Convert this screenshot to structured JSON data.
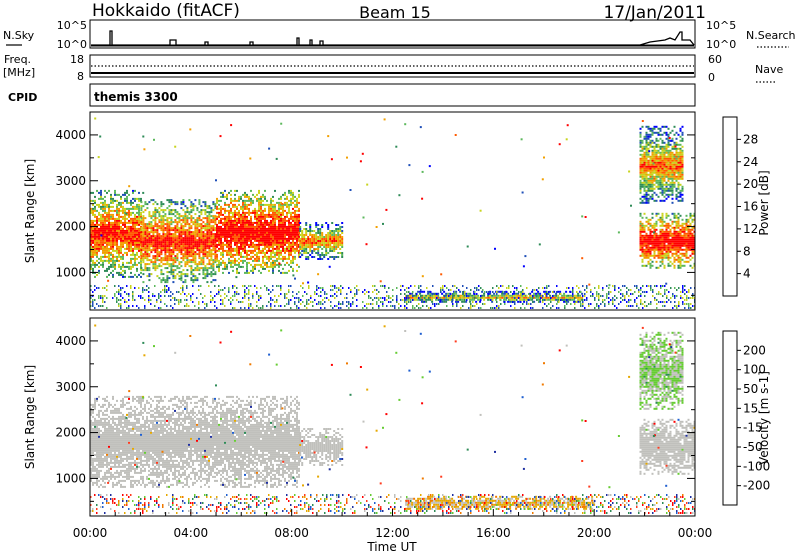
{
  "header": {
    "radar": "Hokkaido (fitACF)",
    "beam": "Beam 15",
    "date": "17/Jan/2011"
  },
  "nsky_panel": {
    "left_label": "N.Sky",
    "right_label": "N.Search",
    "left_ticks": [
      "10^5",
      "10^0"
    ],
    "right_ticks": [
      "10^5",
      "10^0"
    ]
  },
  "freq_panel": {
    "left_label_1": "Freq.",
    "left_label_2": "[MHz]",
    "right_label": "Nave",
    "left_ticks": [
      "18",
      "8"
    ],
    "right_ticks": [
      "60",
      "0"
    ]
  },
  "cpid_panel": {
    "label": "CPID",
    "text": "themis 3300"
  },
  "colors": {
    "power_scale": [
      "#0000ff",
      "#1f4fb8",
      "#2e8b57",
      "#5cb85c",
      "#c8d41e",
      "#f2a000",
      "#ff5a00",
      "#ff0000"
    ],
    "velocity_scale": [
      "#1f2fa0",
      "#1f5fd0",
      "#2e8b57",
      "#66cc33",
      "#c0c0bc",
      "#e6a800",
      "#f07a00",
      "#ff3b1f",
      "#ff0000"
    ],
    "gray": "#c0c0bc"
  },
  "chart_data": [
    {
      "type": "heatmap",
      "name": "power",
      "ylabel": "Slant Range [km]",
      "y_ticks": [
        1000,
        2000,
        3000,
        4000
      ],
      "ylim": [
        180,
        4500
      ],
      "xlim": [
        0,
        24
      ],
      "colorbar": {
        "label": "Power [dB]",
        "ticks": [
          "4",
          "8",
          "12",
          "16",
          "20",
          "24",
          "28"
        ],
        "range": [
          0,
          32
        ]
      },
      "regions": [
        {
          "x": [
            0.0,
            2.0
          ],
          "y": [
            900,
            2800
          ],
          "level": "high"
        },
        {
          "x": [
            2.0,
            5.0
          ],
          "y": [
            800,
            2600
          ],
          "level": "high"
        },
        {
          "x": [
            5.0,
            8.3
          ],
          "y": [
            1000,
            2800
          ],
          "level": "very-high"
        },
        {
          "x": [
            8.3,
            10.0
          ],
          "y": [
            1300,
            2100
          ],
          "level": "medium"
        },
        {
          "x": [
            12.5,
            19.5
          ],
          "y": [
            350,
            600
          ],
          "level": "low-medium"
        },
        {
          "x": [
            21.8,
            24.0
          ],
          "y": [
            1100,
            2300
          ],
          "level": "very-high"
        },
        {
          "x": [
            21.8,
            23.5
          ],
          "y": [
            2500,
            4200
          ],
          "level": "medium"
        }
      ]
    },
    {
      "type": "heatmap",
      "name": "velocity",
      "ylabel": "Slant Range [km]",
      "xlabel": "Time UT",
      "y_ticks": [
        1000,
        2000,
        3000,
        4000
      ],
      "ylim": [
        180,
        4500
      ],
      "xlim": [
        0,
        24
      ],
      "x_ticks": [
        "00:00",
        "04:00",
        "08:00",
        "12:00",
        "16:00",
        "20:00",
        "00:00"
      ],
      "x_tick_hours": [
        0,
        4,
        8,
        12,
        16,
        20,
        24
      ],
      "colorbar": {
        "label": "Velocity [m s-1]",
        "ticks": [
          "200",
          "100",
          "50",
          "15",
          "-15",
          "-50",
          "-100",
          "-200"
        ],
        "range": [
          -250,
          250
        ]
      },
      "regions": [
        {
          "x": [
            0.0,
            8.3
          ],
          "y": [
            800,
            2800
          ],
          "velocity": 0
        },
        {
          "x": [
            8.3,
            10.0
          ],
          "y": [
            1300,
            2100
          ],
          "velocity": 0
        },
        {
          "x": [
            12.5,
            20.0
          ],
          "y": [
            330,
            620
          ],
          "velocity": -40
        },
        {
          "x": [
            21.8,
            24.0
          ],
          "y": [
            1100,
            2300
          ],
          "velocity": 0
        },
        {
          "x": [
            21.8,
            23.5
          ],
          "y": [
            2500,
            4200
          ],
          "velocity": 30
        }
      ]
    }
  ]
}
